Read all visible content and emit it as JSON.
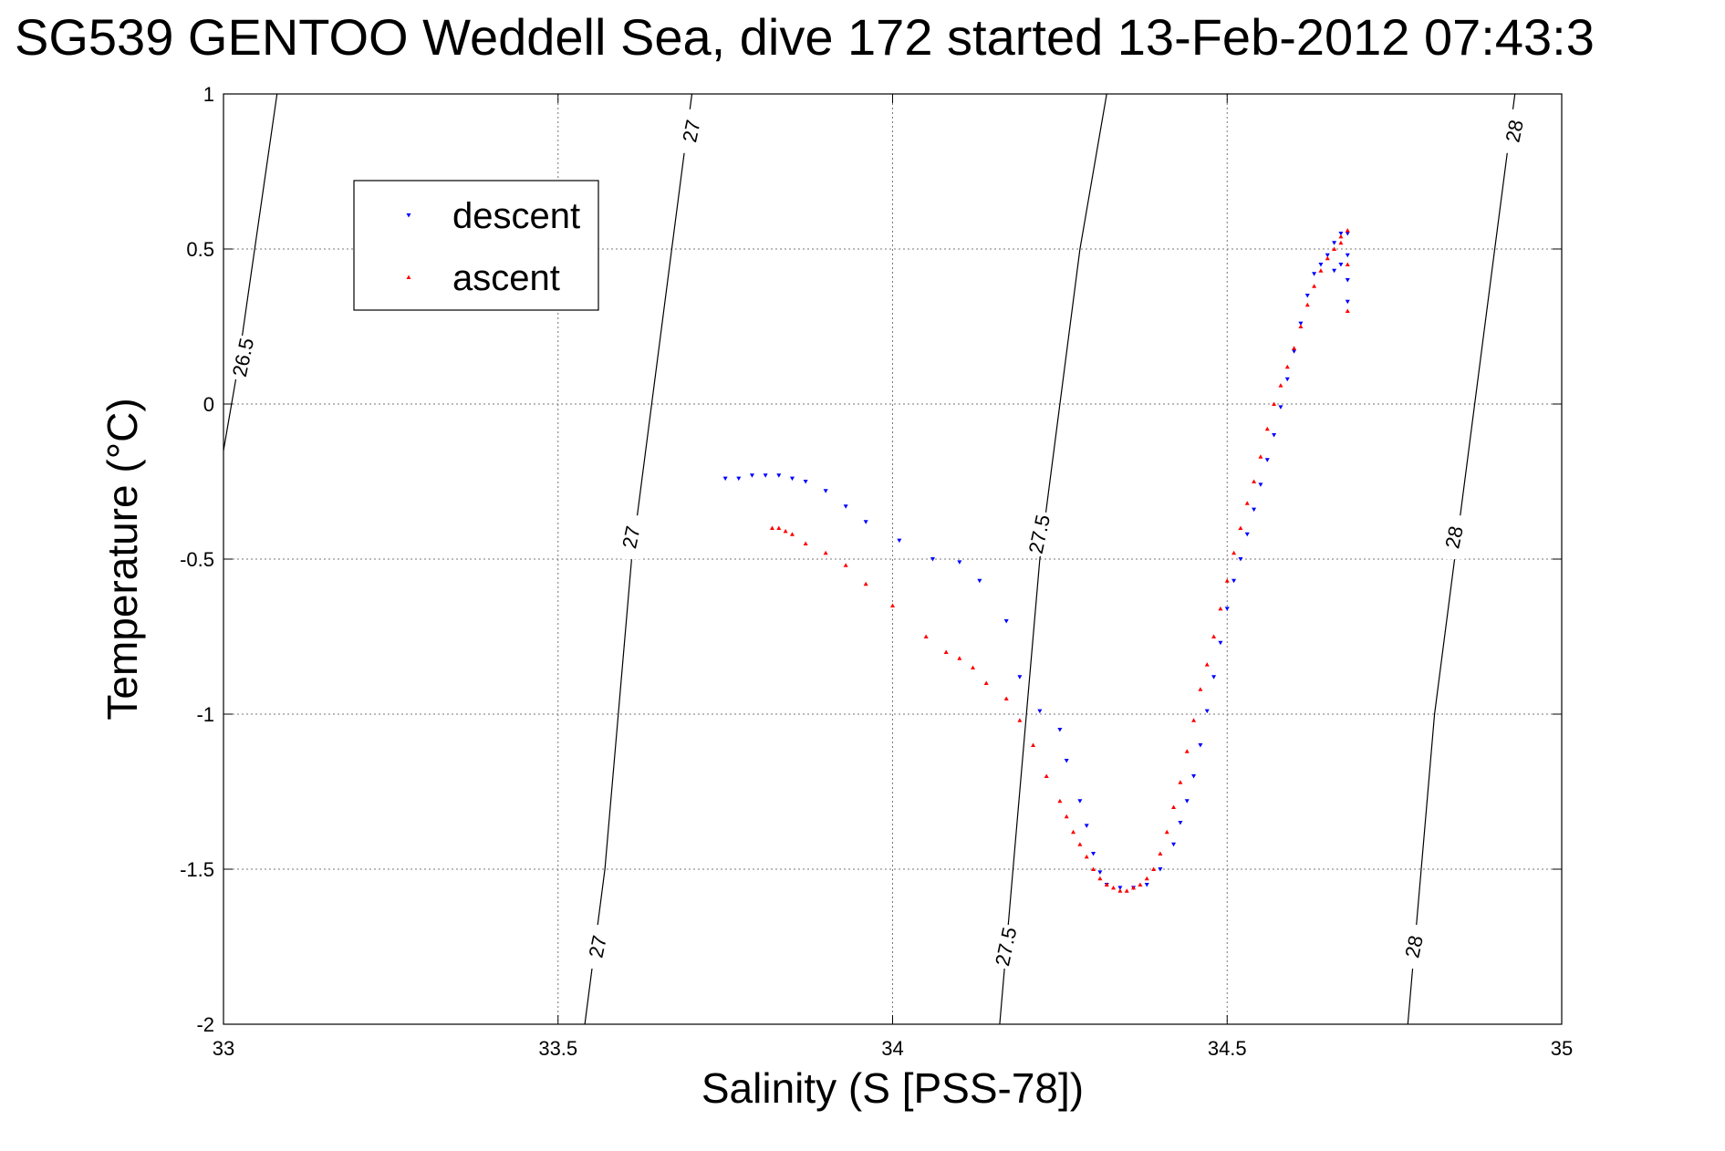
{
  "title": "SG539 GENTOO Weddell Sea, dive 172 started 13-Feb-2012 07:43:3",
  "chart_data": {
    "type": "scatter",
    "xlabel": "Salinity (S [PSS-78])",
    "ylabel": "Temperature (°C)",
    "xlim": [
      33,
      35
    ],
    "ylim": [
      -2,
      1
    ],
    "x_ticks": [
      "33",
      "33.5",
      "34",
      "34.5",
      "35"
    ],
    "y_ticks": [
      "1",
      "0.5",
      "0",
      "-0.5",
      "-1",
      "-1.5",
      "-2"
    ],
    "grid": true,
    "legend": {
      "position": "top-left",
      "entries": [
        {
          "label": "descent",
          "color": "#0000ff",
          "marker": "triangle-down"
        },
        {
          "label": "ascent",
          "color": "#ff0000",
          "marker": "triangle-up"
        }
      ]
    },
    "isopycnals": [
      {
        "label": "26.5",
        "points": [
          [
            33.0,
            -0.15
          ],
          [
            33.02,
            0.1
          ],
          [
            33.04,
            0.4
          ],
          [
            33.06,
            0.7
          ],
          [
            33.08,
            1.0
          ]
        ]
      },
      {
        "label": "27",
        "points": [
          [
            33.54,
            -2.0
          ],
          [
            33.57,
            -1.5
          ],
          [
            33.59,
            -1.0
          ],
          [
            33.61,
            -0.5
          ],
          [
            33.64,
            0.0
          ],
          [
            33.67,
            0.5
          ],
          [
            33.7,
            1.0
          ]
        ]
      },
      {
        "label": "27.5",
        "points": [
          [
            34.16,
            -2.0
          ],
          [
            34.18,
            -1.5
          ],
          [
            34.2,
            -1.0
          ],
          [
            34.22,
            -0.5
          ],
          [
            34.25,
            0.0
          ],
          [
            34.28,
            0.5
          ],
          [
            34.32,
            1.0
          ]
        ]
      },
      {
        "label": "28",
        "points": [
          [
            34.77,
            -2.0
          ],
          [
            34.79,
            -1.5
          ],
          [
            34.81,
            -1.0
          ],
          [
            34.84,
            -0.5
          ],
          [
            34.87,
            0.0
          ],
          [
            34.9,
            0.5
          ],
          [
            34.93,
            1.0
          ]
        ]
      }
    ],
    "isopycnal_labels": [
      {
        "text": "26.5",
        "x": 33.03,
        "y": 0.15
      },
      {
        "text": "27",
        "x": 33.7,
        "y": 0.88
      },
      {
        "text": "27",
        "x": 33.61,
        "y": -0.43
      },
      {
        "text": "27",
        "x": 33.56,
        "y": -1.75
      },
      {
        "text": "27.5",
        "x": 34.22,
        "y": -0.42
      },
      {
        "text": "27.5",
        "x": 34.17,
        "y": -1.75
      },
      {
        "text": "28",
        "x": 34.93,
        "y": 0.88
      },
      {
        "text": "28",
        "x": 34.84,
        "y": -0.43
      },
      {
        "text": "28",
        "x": 34.78,
        "y": -1.75
      }
    ],
    "series": [
      {
        "name": "descent",
        "color": "#0000ff",
        "x": [
          33.75,
          33.77,
          33.79,
          33.81,
          33.83,
          33.85,
          33.87,
          33.9,
          33.93,
          33.96,
          34.01,
          34.06,
          34.1,
          34.13,
          34.17,
          34.19,
          34.22,
          34.25,
          34.26,
          34.28,
          34.29,
          34.3,
          34.31,
          34.32,
          34.34,
          34.36,
          34.38,
          34.4,
          34.42,
          34.43,
          34.44,
          34.45,
          34.46,
          34.47,
          34.48,
          34.49,
          34.5,
          34.51,
          34.52,
          34.53,
          34.54,
          34.55,
          34.56,
          34.57,
          34.58,
          34.59,
          34.6,
          34.61,
          34.62,
          34.63,
          34.64,
          34.65,
          34.66,
          34.67,
          34.68,
          34.68,
          34.68,
          34.68,
          34.67,
          34.66
        ],
        "y": [
          -0.24,
          -0.24,
          -0.23,
          -0.23,
          -0.23,
          -0.24,
          -0.25,
          -0.28,
          -0.33,
          -0.38,
          -0.44,
          -0.5,
          -0.51,
          -0.57,
          -0.7,
          -0.88,
          -0.99,
          -1.05,
          -1.15,
          -1.28,
          -1.36,
          -1.45,
          -1.51,
          -1.55,
          -1.56,
          -1.56,
          -1.55,
          -1.5,
          -1.42,
          -1.35,
          -1.28,
          -1.2,
          -1.1,
          -0.99,
          -0.88,
          -0.77,
          -0.66,
          -0.57,
          -0.5,
          -0.42,
          -0.34,
          -0.26,
          -0.18,
          -0.1,
          -0.01,
          0.08,
          0.17,
          0.26,
          0.35,
          0.42,
          0.45,
          0.48,
          0.52,
          0.55,
          0.55,
          0.48,
          0.4,
          0.33,
          0.45,
          0.43
        ]
      },
      {
        "name": "ascent",
        "color": "#ff0000",
        "x": [
          33.82,
          33.83,
          33.84,
          33.85,
          33.87,
          33.9,
          33.93,
          33.96,
          34.0,
          34.05,
          34.08,
          34.1,
          34.12,
          34.14,
          34.17,
          34.19,
          34.21,
          34.23,
          34.25,
          34.26,
          34.27,
          34.28,
          34.29,
          34.3,
          34.31,
          34.32,
          34.33,
          34.34,
          34.35,
          34.36,
          34.37,
          34.38,
          34.39,
          34.4,
          34.41,
          34.42,
          34.43,
          34.44,
          34.45,
          34.46,
          34.47,
          34.48,
          34.49,
          34.5,
          34.51,
          34.52,
          34.53,
          34.54,
          34.55,
          34.56,
          34.57,
          34.58,
          34.59,
          34.6,
          34.61,
          34.62,
          34.63,
          34.64,
          34.65,
          34.66,
          34.67,
          34.68,
          34.68,
          34.68,
          34.67
        ],
        "y": [
          -0.4,
          -0.4,
          -0.41,
          -0.42,
          -0.45,
          -0.48,
          -0.52,
          -0.58,
          -0.65,
          -0.75,
          -0.8,
          -0.82,
          -0.85,
          -0.9,
          -0.95,
          -1.02,
          -1.1,
          -1.2,
          -1.28,
          -1.33,
          -1.38,
          -1.42,
          -1.46,
          -1.5,
          -1.53,
          -1.55,
          -1.56,
          -1.57,
          -1.57,
          -1.56,
          -1.55,
          -1.53,
          -1.5,
          -1.45,
          -1.38,
          -1.3,
          -1.22,
          -1.12,
          -1.02,
          -0.92,
          -0.84,
          -0.75,
          -0.66,
          -0.57,
          -0.48,
          -0.4,
          -0.32,
          -0.25,
          -0.17,
          -0.08,
          0.0,
          0.06,
          0.12,
          0.18,
          0.25,
          0.32,
          0.38,
          0.43,
          0.47,
          0.5,
          0.54,
          0.56,
          0.45,
          0.3,
          0.52
        ]
      }
    ]
  }
}
